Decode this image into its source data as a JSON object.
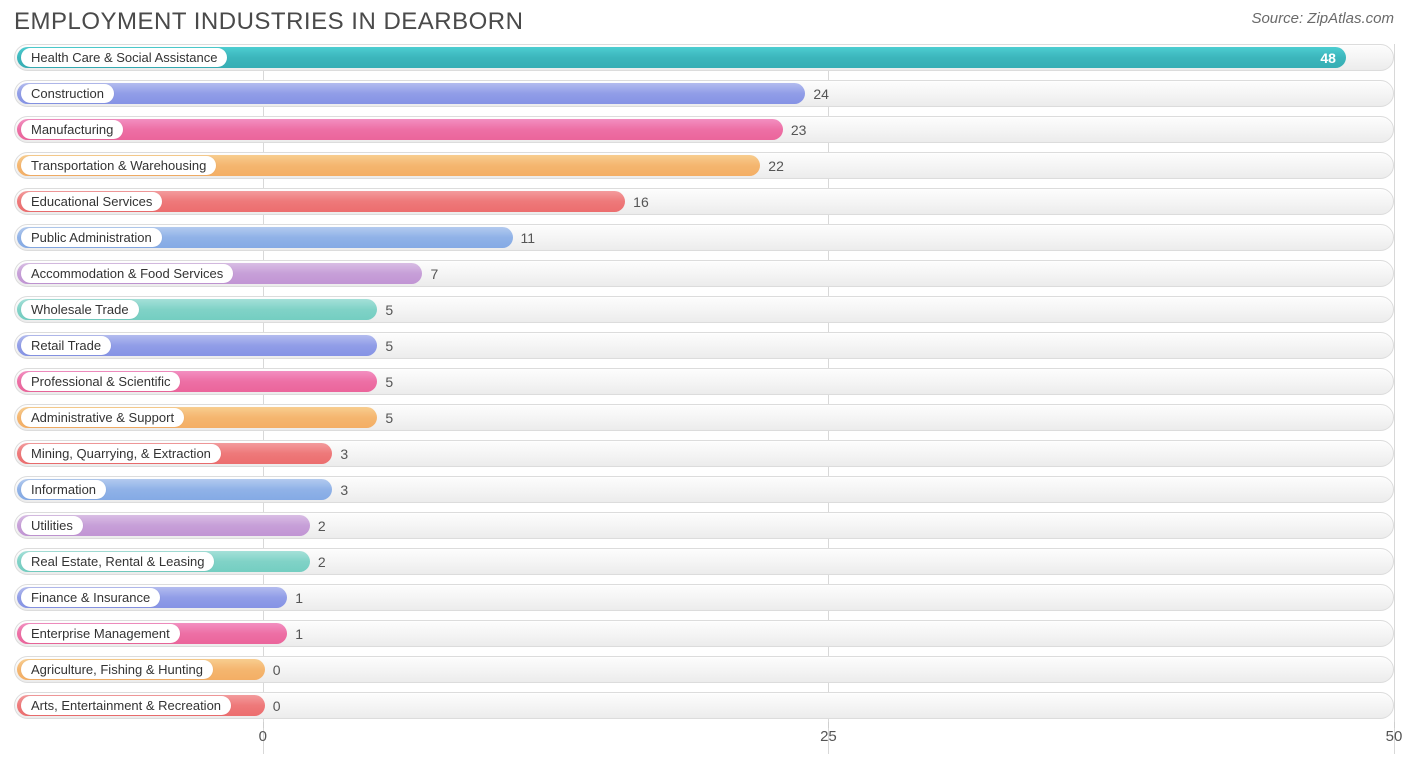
{
  "chart": {
    "type": "horizontal-bar",
    "title": "EMPLOYMENT INDUSTRIES IN DEARBORN",
    "source": "Source: ZipAtlas.com",
    "background_color": "#ffffff",
    "track_bg_top": "#fdfdfd",
    "track_bg_bottom": "#ececec",
    "track_border": "#dcdcdc",
    "grid_color": "#d8d8d8",
    "title_color": "#4a4a4a",
    "title_fontsize": 24,
    "label_fontsize": 13,
    "value_fontsize": 14,
    "axis_fontsize": 15,
    "x_min": -11,
    "x_max": 50,
    "x_ticks": [
      0,
      25,
      50
    ],
    "left_cap_units": 1.0,
    "bars": [
      {
        "label": "Health Care & Social Assistance",
        "value": 48,
        "color": "#39b2b8",
        "value_inside": true
      },
      {
        "label": "Construction",
        "value": 24,
        "color": "#8b98e6",
        "value_inside": false
      },
      {
        "label": "Manufacturing",
        "value": 23,
        "color": "#ec6aa0",
        "value_inside": false
      },
      {
        "label": "Transportation & Warehousing",
        "value": 22,
        "color": "#f4b26a",
        "value_inside": false
      },
      {
        "label": "Educational Services",
        "value": 16,
        "color": "#ed7374",
        "value_inside": false
      },
      {
        "label": "Public Administration",
        "value": 11,
        "color": "#8aaee6",
        "value_inside": false
      },
      {
        "label": "Accommodation & Food Services",
        "value": 7,
        "color": "#c49ad6",
        "value_inside": false
      },
      {
        "label": "Wholesale Trade",
        "value": 5,
        "color": "#7ad0c4",
        "value_inside": false
      },
      {
        "label": "Retail Trade",
        "value": 5,
        "color": "#8b98e6",
        "value_inside": false
      },
      {
        "label": "Professional & Scientific",
        "value": 5,
        "color": "#ec6aa0",
        "value_inside": false
      },
      {
        "label": "Administrative & Support",
        "value": 5,
        "color": "#f4b26a",
        "value_inside": false
      },
      {
        "label": "Mining, Quarrying, & Extraction",
        "value": 3,
        "color": "#ed7374",
        "value_inside": false
      },
      {
        "label": "Information",
        "value": 3,
        "color": "#8aaee6",
        "value_inside": false
      },
      {
        "label": "Utilities",
        "value": 2,
        "color": "#c49ad6",
        "value_inside": false
      },
      {
        "label": "Real Estate, Rental & Leasing",
        "value": 2,
        "color": "#7ad0c4",
        "value_inside": false
      },
      {
        "label": "Finance & Insurance",
        "value": 1,
        "color": "#8b98e6",
        "value_inside": false
      },
      {
        "label": "Enterprise Management",
        "value": 1,
        "color": "#ec6aa0",
        "value_inside": false
      },
      {
        "label": "Agriculture, Fishing & Hunting",
        "value": 0,
        "color": "#f4b26a",
        "value_inside": false
      },
      {
        "label": "Arts, Entertainment & Recreation",
        "value": 0,
        "color": "#ed7374",
        "value_inside": false
      }
    ]
  }
}
